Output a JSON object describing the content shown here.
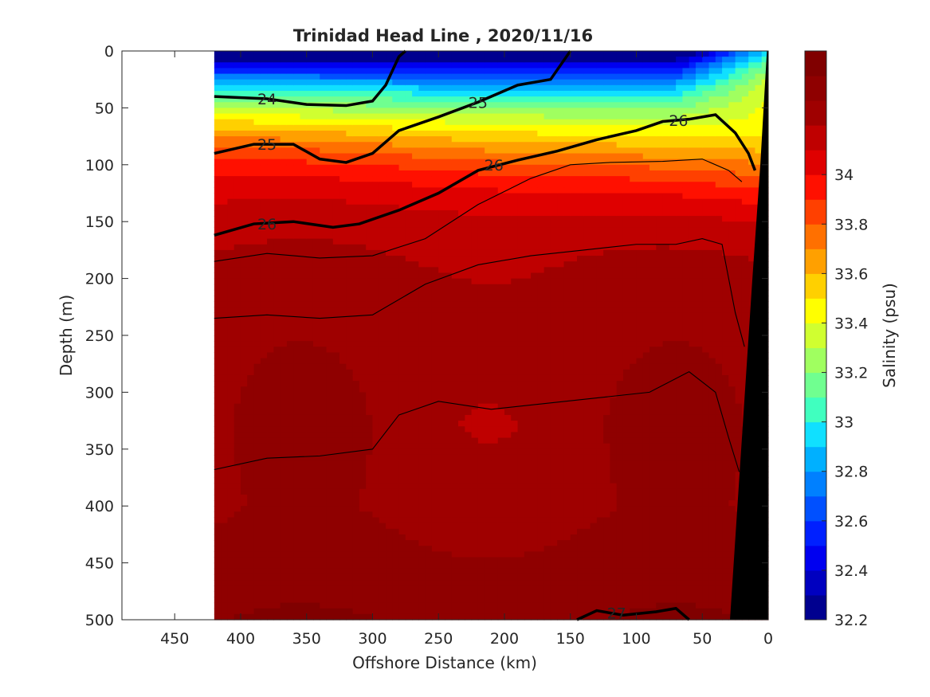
{
  "chart_data": {
    "type": "heatmap",
    "title": "Trinidad Head Line , 2020/11/16",
    "xlabel": "Offshore Distance (km)",
    "ylabel": "Depth (m)",
    "colorbar_label": "Salinity (psu)",
    "xlim": [
      490,
      0
    ],
    "ylim": [
      0,
      500
    ],
    "x_ticks": [
      450,
      400,
      350,
      300,
      250,
      200,
      150,
      100,
      50,
      0
    ],
    "y_ticks": [
      0,
      50,
      100,
      150,
      200,
      250,
      300,
      350,
      400,
      450,
      500
    ],
    "colorbar_ticks": [
      34,
      33.8,
      33.6,
      33.4,
      33.2,
      33,
      32.8,
      32.6,
      32.4,
      32.2
    ],
    "colorbar_range": [
      32.2,
      34.5
    ],
    "data_extent_km": [
      420,
      0
    ],
    "salinity_levels": [
      32.2,
      32.3,
      32.4,
      32.5,
      32.6,
      32.7,
      32.8,
      32.9,
      33.0,
      33.1,
      33.2,
      33.3,
      33.4,
      33.5,
      33.6,
      33.7,
      33.8,
      33.9,
      34.0,
      34.1,
      34.2,
      34.3,
      34.4
    ],
    "level_colors": [
      "#00008f",
      "#0000c0",
      "#0000f0",
      "#0020ff",
      "#0050ff",
      "#0080ff",
      "#00b0ff",
      "#10e0ff",
      "#40ffbf",
      "#70ff90",
      "#a0ff60",
      "#d0ff30",
      "#ffff00",
      "#ffd000",
      "#ffa000",
      "#ff7000",
      "#ff4000",
      "#ff1000",
      "#df0000",
      "#bf0000",
      "#9f0000",
      "#8f0000",
      "#800000"
    ],
    "isopycnals": [
      {
        "sigma": 24,
        "label": "24",
        "bold": true,
        "points": [
          [
            420,
            40
          ],
          [
            380,
            42
          ],
          [
            350,
            47
          ],
          [
            320,
            48
          ],
          [
            300,
            44
          ],
          [
            290,
            30
          ],
          [
            280,
            5
          ],
          [
            275,
            0
          ]
        ]
      },
      {
        "sigma": 25,
        "label": "25",
        "bold": true,
        "points": [
          [
            420,
            90
          ],
          [
            390,
            82
          ],
          [
            360,
            82
          ],
          [
            340,
            95
          ],
          [
            320,
            98
          ],
          [
            300,
            90
          ],
          [
            280,
            70
          ],
          [
            250,
            58
          ],
          [
            220,
            45
          ],
          [
            190,
            30
          ],
          [
            165,
            25
          ],
          [
            150,
            0
          ]
        ]
      },
      {
        "sigma": 26,
        "label": "26",
        "bold": true,
        "points": [
          [
            420,
            162
          ],
          [
            390,
            152
          ],
          [
            360,
            150
          ],
          [
            330,
            155
          ],
          [
            310,
            152
          ],
          [
            280,
            140
          ],
          [
            250,
            125
          ],
          [
            220,
            105
          ],
          [
            190,
            96
          ],
          [
            160,
            88
          ],
          [
            130,
            78
          ],
          [
            100,
            70
          ],
          [
            80,
            62
          ],
          [
            60,
            60
          ],
          [
            40,
            56
          ],
          [
            25,
            72
          ],
          [
            15,
            90
          ],
          [
            10,
            105
          ]
        ]
      },
      {
        "sigma": 27,
        "label": "27",
        "bold": true,
        "points": [
          [
            145,
            500
          ],
          [
            130,
            492
          ],
          [
            110,
            496
          ],
          [
            85,
            493
          ],
          [
            70,
            490
          ],
          [
            60,
            500
          ]
        ]
      },
      {
        "sigma": 26.3,
        "label": "",
        "bold": false,
        "points": [
          [
            420,
            185
          ],
          [
            380,
            178
          ],
          [
            340,
            182
          ],
          [
            300,
            180
          ],
          [
            260,
            165
          ],
          [
            220,
            135
          ],
          [
            180,
            112
          ],
          [
            150,
            100
          ],
          [
            120,
            98
          ],
          [
            80,
            97
          ],
          [
            50,
            95
          ],
          [
            30,
            105
          ],
          [
            20,
            115
          ]
        ]
      },
      {
        "sigma": 26.5,
        "label": "",
        "bold": false,
        "points": [
          [
            420,
            235
          ],
          [
            380,
            232
          ],
          [
            340,
            235
          ],
          [
            300,
            232
          ],
          [
            260,
            205
          ],
          [
            220,
            188
          ],
          [
            180,
            180
          ],
          [
            140,
            175
          ],
          [
            100,
            170
          ],
          [
            70,
            170
          ],
          [
            50,
            165
          ],
          [
            35,
            170
          ],
          [
            25,
            230
          ],
          [
            18,
            260
          ]
        ]
      },
      {
        "sigma": 26.7,
        "label": "",
        "bold": false,
        "points": [
          [
            420,
            368
          ],
          [
            380,
            358
          ],
          [
            340,
            356
          ],
          [
            300,
            350
          ],
          [
            280,
            320
          ],
          [
            250,
            308
          ],
          [
            210,
            315
          ],
          [
            170,
            310
          ],
          [
            130,
            305
          ],
          [
            90,
            300
          ],
          [
            60,
            282
          ],
          [
            40,
            300
          ],
          [
            30,
            340
          ],
          [
            22,
            370
          ]
        ]
      }
    ]
  }
}
